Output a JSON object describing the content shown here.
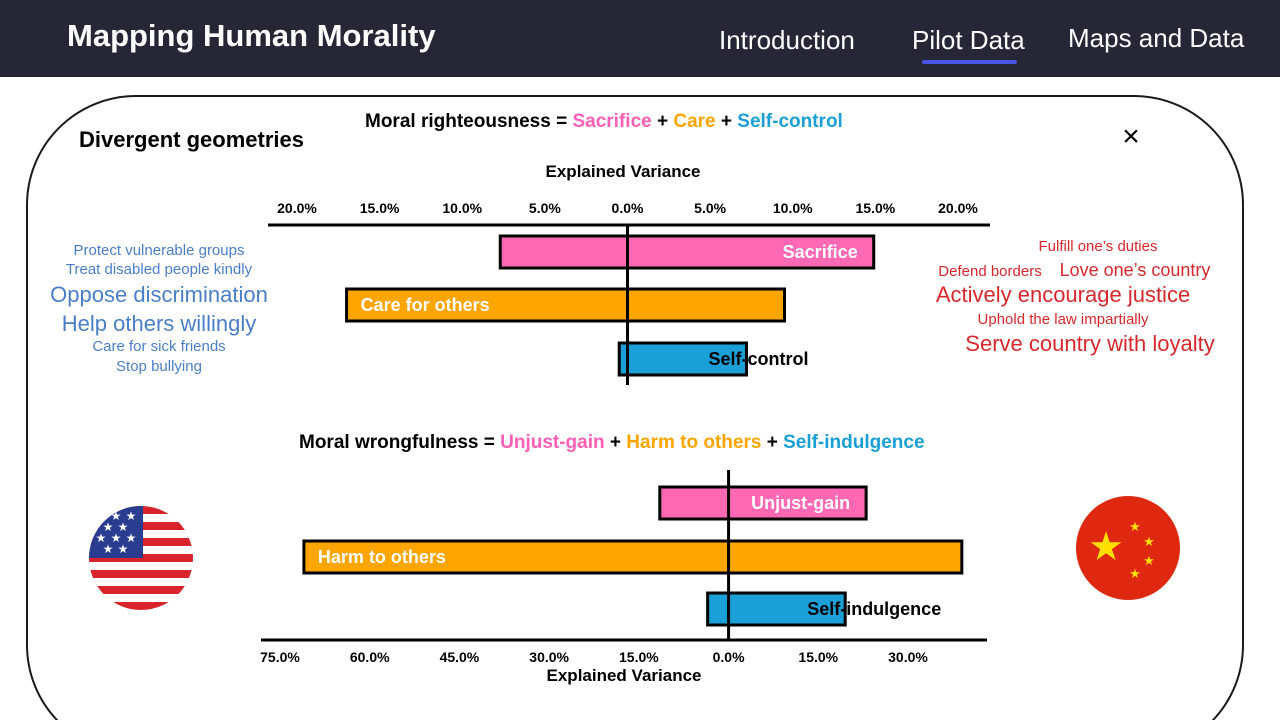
{
  "nav": {
    "title": "Mapping Human Morality",
    "links": [
      "Introduction",
      "Pilot Data",
      "Maps and Data"
    ],
    "active": "Pilot Data"
  },
  "panel": {
    "heading": "Divergent geometries",
    "close": "×"
  },
  "colors": {
    "nav_bg": "#262636",
    "accent": "#4a55e6",
    "pink": "#ff69b4",
    "orange": "#ffa500",
    "blue": "#1a9fd6",
    "us_blue_words": "#4a7fc8",
    "cn_red_words": "#d8282c"
  },
  "us_words": [
    {
      "text": "Protect vulnerable groups",
      "size": "small"
    },
    {
      "text": "Treat disabled people kindly",
      "size": "small"
    },
    {
      "text": "Oppose discrimination",
      "size": "large"
    },
    {
      "text": "Help others willingly",
      "size": "large"
    },
    {
      "text": "Care for sick friends",
      "size": "small"
    },
    {
      "text": "Stop bullying",
      "size": "small"
    }
  ],
  "cn_words": [
    {
      "text": "Fulfill one’s duties",
      "size": "small"
    },
    {
      "text": "Defend borders",
      "size": "small"
    },
    {
      "text": "Love one’s country",
      "size": "medium"
    },
    {
      "text": "Actively encourage justice",
      "size": "large"
    },
    {
      "text": "Uphold the law impartially",
      "size": "small"
    },
    {
      "text": "Serve country with loyalty",
      "size": "large"
    }
  ],
  "flags": {
    "left": "us-flag",
    "right": "china-flag"
  },
  "chart_data": [
    {
      "type": "bar",
      "orientation": "horizontal-diverging",
      "title_parts": [
        {
          "text": "Moral righteousness",
          "color": "#000000"
        },
        {
          "text": " = ",
          "color": "#000000"
        },
        {
          "text": "Sacrifice",
          "color": "#ff5fb5"
        },
        {
          "text": " + ",
          "color": "#000000"
        },
        {
          "text": "Care",
          "color": "#ffa500"
        },
        {
          "text": " + ",
          "color": "#000000"
        },
        {
          "text": "Self-control",
          "color": "#1a9fd6"
        }
      ],
      "xlabel": "Explained Variance",
      "xlabel_position": "top",
      "tick_labels": [
        "20.0%",
        "15.0%",
        "10.0%",
        "5.0%",
        "0.0%",
        "5.0%",
        "10.0%",
        "15.0%",
        "20.0%"
      ],
      "tick_values": [
        -20,
        -15,
        -10,
        -5,
        0,
        5,
        10,
        15,
        20
      ],
      "xlim": [
        -21.5,
        22.5
      ],
      "categories": [
        "Sacrifice",
        "Care for others",
        "Self-control"
      ],
      "left_values": [
        7.7,
        17.0,
        0.5
      ],
      "right_values": [
        14.9,
        9.5,
        7.2
      ],
      "colors": [
        "#ff69b4",
        "#ffa500",
        "#1a9fd6"
      ],
      "label_colors": [
        "#ffffff",
        "#ffffff",
        "#000000"
      ],
      "label_anchor": [
        "right-inside",
        "left-inside",
        "center-right"
      ]
    },
    {
      "type": "bar",
      "orientation": "horizontal-diverging",
      "title_parts": [
        {
          "text": "Moral wrongfulness",
          "color": "#000000"
        },
        {
          "text": " = ",
          "color": "#000000"
        },
        {
          "text": "Unjust-gain",
          "color": "#ff5fb5"
        },
        {
          "text": " + ",
          "color": "#000000"
        },
        {
          "text": "Harm to others",
          "color": "#ffa500"
        },
        {
          "text": " + ",
          "color": "#000000"
        },
        {
          "text": "Self-indulgence",
          "color": "#1a9fd6"
        }
      ],
      "xlabel": "Explained Variance",
      "xlabel_position": "bottom",
      "tick_labels": [
        "75.0%",
        "60.0%",
        "45.0%",
        "30.0%",
        "15.0%",
        "0.0%",
        "15.0%",
        "30.0%"
      ],
      "tick_values": [
        -75,
        -60,
        -45,
        -30,
        -15,
        0,
        15,
        30
      ],
      "xlim": [
        -80,
        43
      ],
      "categories": [
        "Unjust-gain",
        "Harm to others",
        "Self-indulgence"
      ],
      "left_values": [
        11.5,
        71.0,
        3.5
      ],
      "right_values": [
        23.0,
        39.0,
        19.5
      ],
      "colors": [
        "#ff69b4",
        "#ffa500",
        "#1a9fd6"
      ],
      "label_colors": [
        "#ffffff",
        "#ffffff",
        "#000000"
      ],
      "label_anchor": [
        "right-inside",
        "left-inside",
        "center-right"
      ]
    }
  ]
}
